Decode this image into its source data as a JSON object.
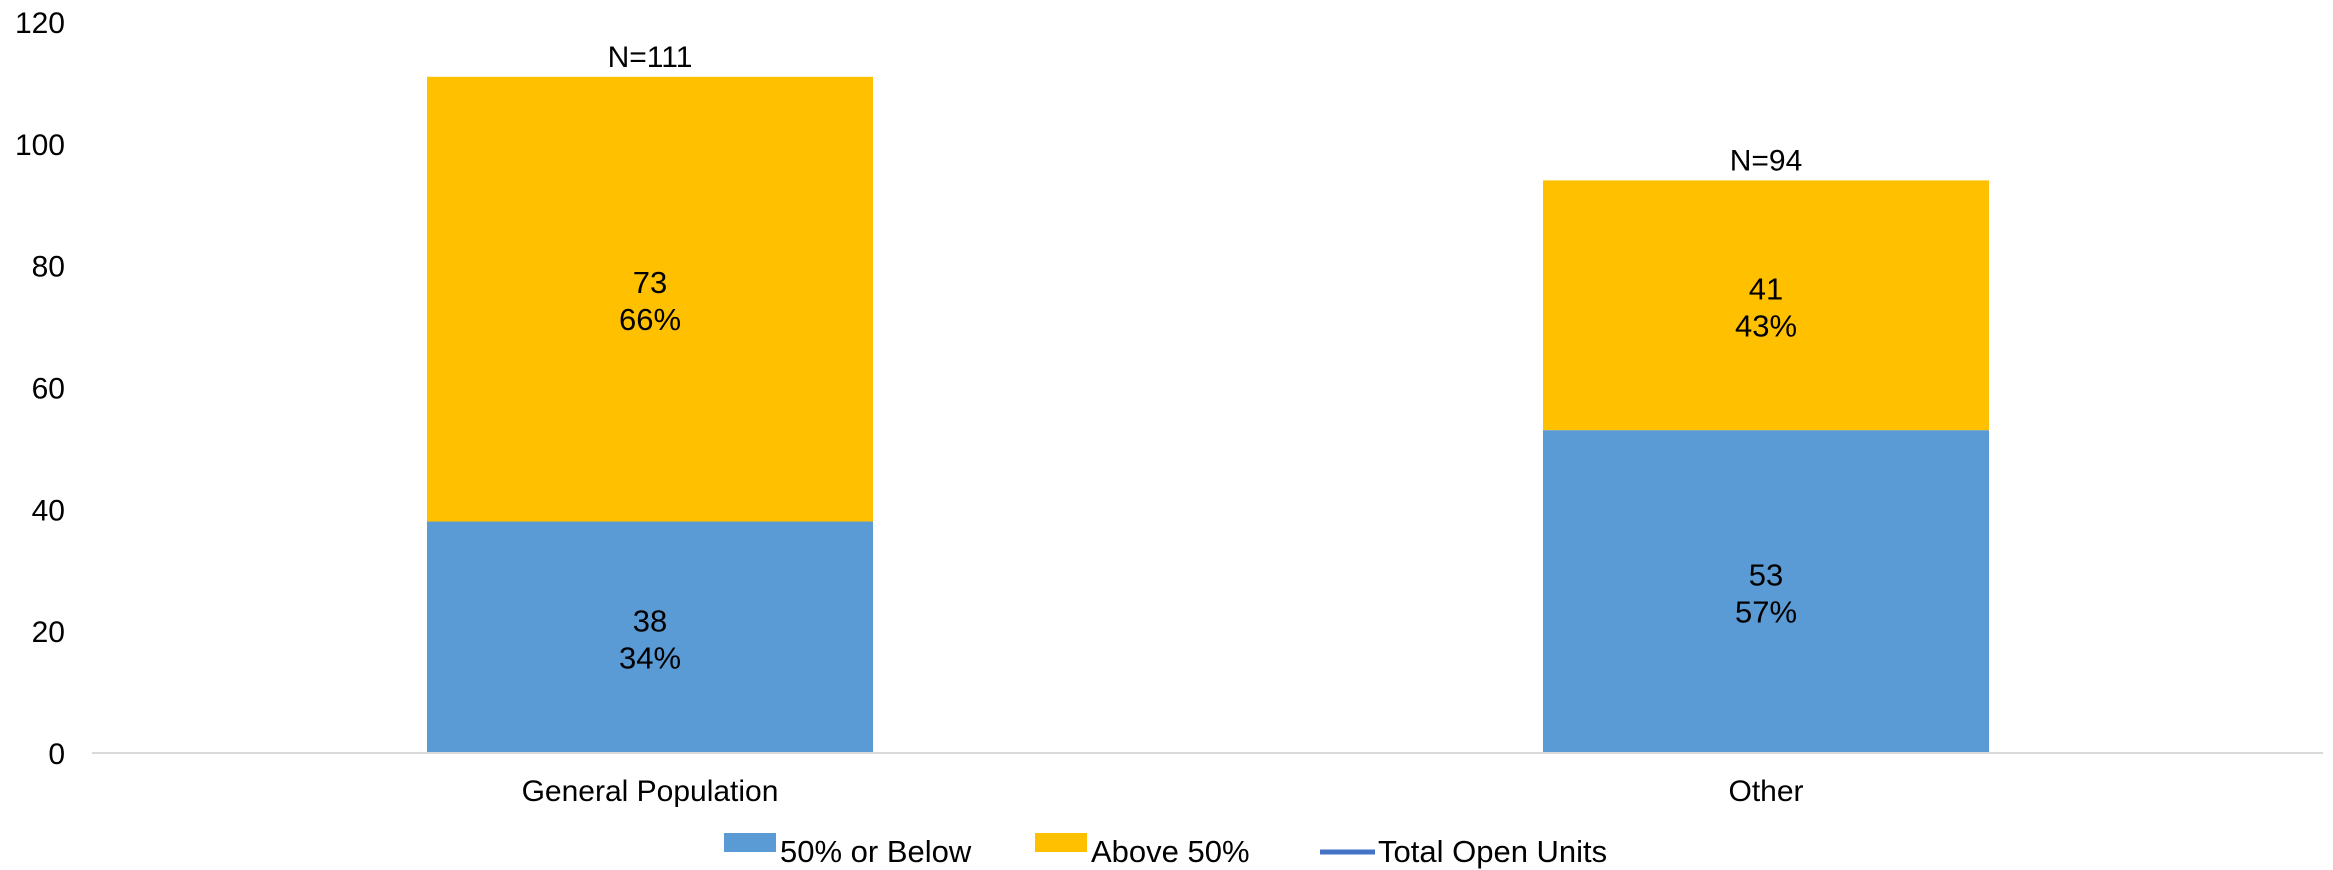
{
  "chart_data": {
    "type": "bar",
    "stacked": true,
    "categories": [
      "General Population",
      "Other"
    ],
    "series": [
      {
        "name": "50% or Below",
        "values": [
          38,
          53
        ],
        "labels": [
          "34%",
          "57%"
        ],
        "color": "#5B9BD5"
      },
      {
        "name": "Above 50%",
        "values": [
          73,
          41
        ],
        "labels": [
          "66%",
          "43%"
        ],
        "color": "#FFC000"
      }
    ],
    "line_series": {
      "name": "Total Open Units",
      "values": [
        111,
        94
      ],
      "color": "#4472C4"
    },
    "total_labels": [
      "N=111",
      "N=94"
    ],
    "ylim": [
      0,
      120
    ],
    "yticks": [
      0,
      20,
      40,
      60,
      80,
      100,
      120
    ],
    "title": "",
    "xlabel": "",
    "ylabel": "",
    "grid": false,
    "legend_position": "bottom"
  }
}
